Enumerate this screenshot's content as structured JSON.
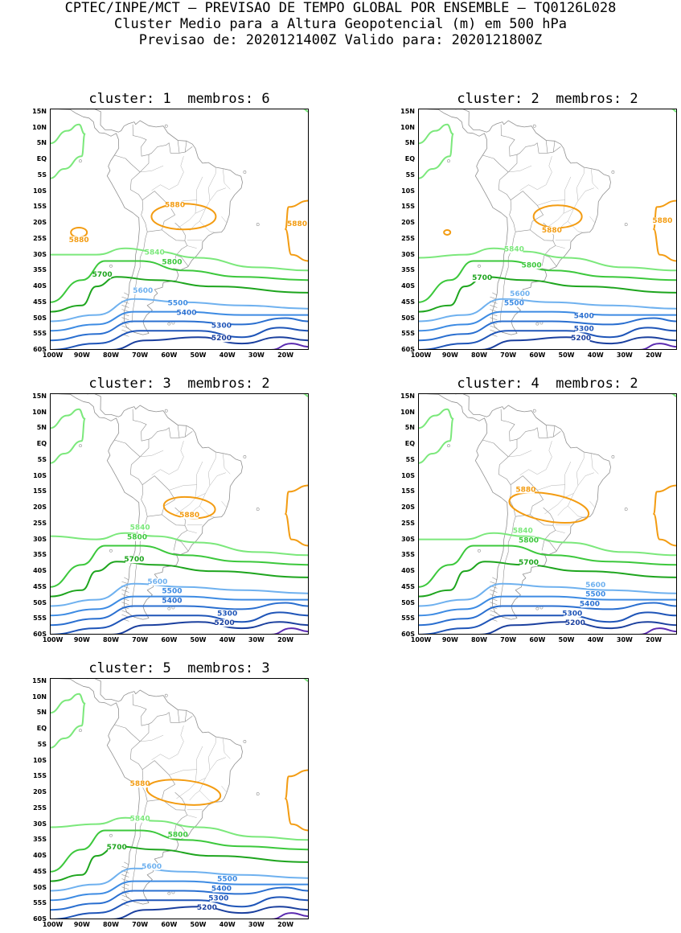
{
  "header": {
    "line1": "CPTEC/INPE/MCT – PREVISAO DE TEMPO GLOBAL POR ENSEMBLE – TQ0126L028",
    "line2": "Cluster Medio para a Altura Geopotencial (m) em 500 hPa",
    "line3": "Previsao de: 2020121400Z   Valido para: 2020121800Z"
  },
  "axis": {
    "lat_labels": [
      "15N",
      "10N",
      "5N",
      "EQ",
      "5S",
      "10S",
      "15S",
      "20S",
      "25S",
      "30S",
      "35S",
      "40S",
      "45S",
      "50S",
      "55S",
      "60S"
    ],
    "lon_labels": [
      "100W",
      "90W",
      "80W",
      "70W",
      "60W",
      "50W",
      "40W",
      "30W",
      "20W"
    ]
  },
  "colors": {
    "c5880": "#f39c12",
    "c5840": "#7be87b",
    "c5800": "#3cc83c",
    "c5700": "#1ea51e",
    "c5600": "#6fb1ef",
    "c5500": "#3d8be3",
    "c5400": "#2a6fd0",
    "c5300": "#1f55b8",
    "c5200": "#1a3f9e",
    "c5100": "#5b2bb0",
    "coast": "#909090"
  },
  "panels": [
    {
      "cluster_label": "cluster:",
      "cluster_num": "1",
      "members_label": "membros:",
      "members_num": "6",
      "labels": [
        {
          "text": "5880",
          "lon": -58,
          "lat": -15,
          "level": "c5880"
        },
        {
          "text": "5880",
          "lon": -91,
          "lat": -26,
          "level": "c5880"
        },
        {
          "text": "5880",
          "lon": -16,
          "lat": -21,
          "level": "c5880"
        },
        {
          "text": "5840",
          "lon": -65,
          "lat": -30,
          "level": "c5840"
        },
        {
          "text": "5800",
          "lon": -59,
          "lat": -33,
          "level": "c5800"
        },
        {
          "text": "5700",
          "lon": -83,
          "lat": -37,
          "level": "c5700"
        },
        {
          "text": "5600",
          "lon": -69,
          "lat": -42,
          "level": "c5600"
        },
        {
          "text": "5500",
          "lon": -57,
          "lat": -46,
          "level": "c5500"
        },
        {
          "text": "5400",
          "lon": -54,
          "lat": -49,
          "level": "c5400"
        },
        {
          "text": "5300",
          "lon": -42,
          "lat": -53,
          "level": "c5300"
        },
        {
          "text": "5200",
          "lon": -42,
          "lat": -57,
          "level": "c5200"
        }
      ]
    },
    {
      "cluster_label": "cluster:",
      "cluster_num": "2",
      "members_label": "membros:",
      "members_num": "2",
      "labels": [
        {
          "text": "5880",
          "lon": -55,
          "lat": -23,
          "level": "c5880"
        },
        {
          "text": "5880",
          "lon": -17,
          "lat": -20,
          "level": "c5880"
        },
        {
          "text": "5840",
          "lon": -68,
          "lat": -29,
          "level": "c5840"
        },
        {
          "text": "5800",
          "lon": -62,
          "lat": -34,
          "level": "c5800"
        },
        {
          "text": "5700",
          "lon": -79,
          "lat": -38,
          "level": "c5700"
        },
        {
          "text": "5600",
          "lon": -66,
          "lat": -43,
          "level": "c5600"
        },
        {
          "text": "5500",
          "lon": -68,
          "lat": -46,
          "level": "c5500"
        },
        {
          "text": "5400",
          "lon": -44,
          "lat": -50,
          "level": "c5400"
        },
        {
          "text": "5300",
          "lon": -44,
          "lat": -54,
          "level": "c5300"
        },
        {
          "text": "5200",
          "lon": -45,
          "lat": -57,
          "level": "c5200"
        }
      ]
    },
    {
      "cluster_label": "cluster:",
      "cluster_num": "3",
      "members_label": "membros:",
      "members_num": "2",
      "labels": [
        {
          "text": "5880",
          "lon": -53,
          "lat": -23,
          "level": "c5880"
        },
        {
          "text": "5840",
          "lon": -70,
          "lat": -27,
          "level": "c5840"
        },
        {
          "text": "5800",
          "lon": -71,
          "lat": -30,
          "level": "c5800"
        },
        {
          "text": "5700",
          "lon": -72,
          "lat": -37,
          "level": "c5700"
        },
        {
          "text": "5600",
          "lon": -64,
          "lat": -44,
          "level": "c5600"
        },
        {
          "text": "5500",
          "lon": -59,
          "lat": -47,
          "level": "c5500"
        },
        {
          "text": "5400",
          "lon": -59,
          "lat": -50,
          "level": "c5400"
        },
        {
          "text": "5300",
          "lon": -40,
          "lat": -54,
          "level": "c5300"
        },
        {
          "text": "5200",
          "lon": -41,
          "lat": -57,
          "level": "c5200"
        }
      ]
    },
    {
      "cluster_label": "cluster:",
      "cluster_num": "4",
      "members_label": "membros:",
      "members_num": "2",
      "labels": [
        {
          "text": "5880",
          "lon": -64,
          "lat": -15,
          "level": "c5880"
        },
        {
          "text": "5840",
          "lon": -65,
          "lat": -28,
          "level": "c5840"
        },
        {
          "text": "5800",
          "lon": -63,
          "lat": -31,
          "level": "c5800"
        },
        {
          "text": "5700",
          "lon": -63,
          "lat": -38,
          "level": "c5700"
        },
        {
          "text": "5600",
          "lon": -40,
          "lat": -45,
          "level": "c5600"
        },
        {
          "text": "5500",
          "lon": -40,
          "lat": -48,
          "level": "c5500"
        },
        {
          "text": "5400",
          "lon": -42,
          "lat": -51,
          "level": "c5400"
        },
        {
          "text": "5300",
          "lon": -48,
          "lat": -54,
          "level": "c5300"
        },
        {
          "text": "5200",
          "lon": -47,
          "lat": -57,
          "level": "c5200"
        }
      ]
    },
    {
      "cluster_label": "cluster:",
      "cluster_num": "5",
      "members_label": "membros:",
      "members_num": "3",
      "labels": [
        {
          "text": "5880",
          "lon": -70,
          "lat": -18,
          "level": "c5880"
        },
        {
          "text": "5840",
          "lon": -70,
          "lat": -29,
          "level": "c5840"
        },
        {
          "text": "5800",
          "lon": -57,
          "lat": -34,
          "level": "c5800"
        },
        {
          "text": "5700",
          "lon": -78,
          "lat": -38,
          "level": "c5700"
        },
        {
          "text": "5600",
          "lon": -66,
          "lat": -44,
          "level": "c5600"
        },
        {
          "text": "5500",
          "lon": -40,
          "lat": -48,
          "level": "c5500"
        },
        {
          "text": "5400",
          "lon": -42,
          "lat": -51,
          "level": "c5400"
        },
        {
          "text": "5300",
          "lon": -43,
          "lat": -54,
          "level": "c5300"
        },
        {
          "text": "5200",
          "lon": -47,
          "lat": -57,
          "level": "c5200"
        }
      ]
    }
  ]
}
